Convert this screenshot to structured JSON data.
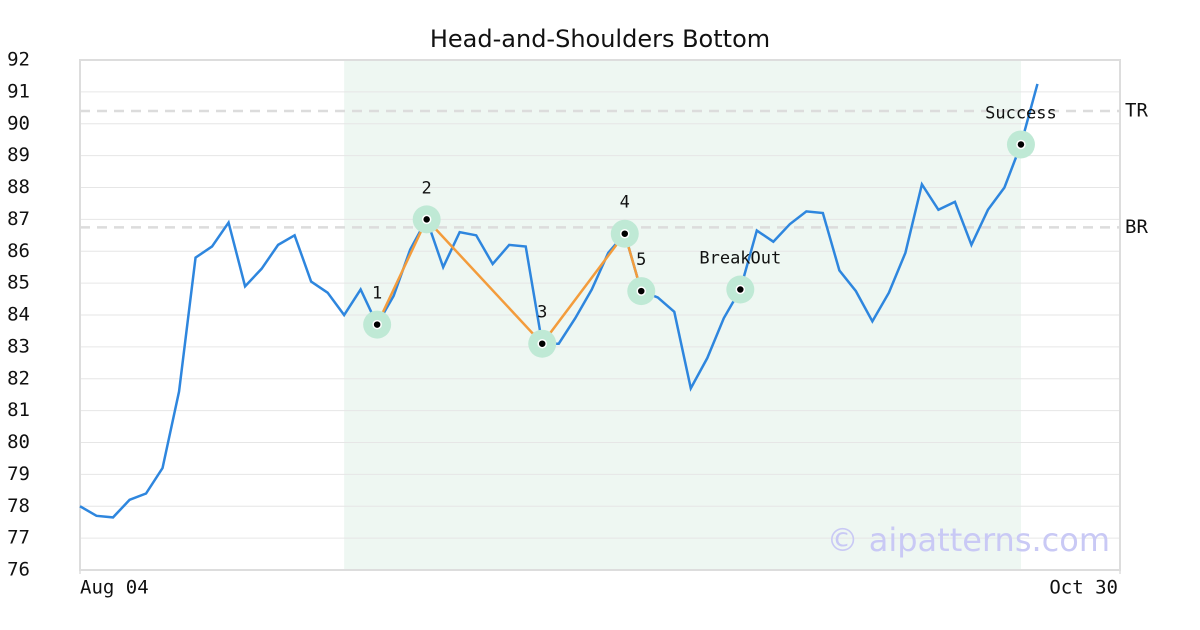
{
  "chart_data": {
    "type": "line",
    "title": "Head-and-Shoulders Bottom",
    "x": [
      0,
      1,
      2,
      3,
      4,
      5,
      6,
      7,
      8,
      9,
      10,
      11,
      12,
      13,
      14,
      15,
      16,
      17,
      18,
      19,
      20,
      21,
      22,
      23,
      24,
      25,
      26,
      27,
      28,
      29,
      30,
      31,
      32,
      33,
      34,
      35,
      36,
      37,
      38,
      39,
      40,
      41,
      42,
      43,
      44,
      45,
      46,
      47,
      48,
      49,
      50,
      51,
      52,
      53,
      54,
      55,
      56,
      57,
      58
    ],
    "series": [
      {
        "color": "#2e86de",
        "values": [
          78.0,
          77.7,
          77.65,
          78.2,
          78.4,
          79.2,
          81.6,
          85.8,
          86.15,
          86.9,
          84.9,
          85.45,
          86.2,
          86.5,
          85.05,
          84.7,
          84.0,
          84.8,
          83.7,
          84.6,
          86.05,
          87.0,
          85.5,
          86.6,
          86.5,
          85.6,
          86.2,
          86.15,
          83.1,
          83.1,
          83.9,
          84.8,
          85.95,
          86.55,
          84.75,
          84.55,
          84.1,
          81.7,
          82.65,
          83.9,
          84.8,
          86.65,
          86.3,
          86.85,
          87.25,
          87.2,
          85.4,
          84.75,
          83.8,
          84.7,
          85.95,
          88.1,
          87.3,
          87.55,
          86.2,
          87.3,
          88.0,
          89.35,
          91.25
        ]
      }
    ],
    "xlim": [
      0,
      63
    ],
    "xticks": [
      {
        "value": 0,
        "label": "Aug 04"
      },
      {
        "value": 63,
        "label": "Oct 30"
      }
    ],
    "ylim": [
      76,
      92
    ],
    "yticks": [
      76,
      77,
      78,
      79,
      80,
      81,
      82,
      83,
      84,
      85,
      86,
      87,
      88,
      89,
      90,
      91,
      92
    ],
    "grid": true,
    "shaded_range": [
      16,
      57
    ],
    "shade_color": "#eef7f2",
    "pattern_color": "#f39c3c",
    "marker_color": "#bfe9d5",
    "pattern_points": [
      {
        "label": "1",
        "x": 18,
        "y": 83.7
      },
      {
        "label": "2",
        "x": 21,
        "y": 87.0
      },
      {
        "label": "3",
        "x": 28,
        "y": 83.1
      },
      {
        "label": "4",
        "x": 33,
        "y": 86.55
      },
      {
        "label": "5",
        "x": 34,
        "y": 84.75
      }
    ],
    "signals": [
      {
        "label": "BreakOut",
        "x": 40,
        "y": 84.8
      },
      {
        "label": "Success",
        "x": 57,
        "y": 89.35
      }
    ],
    "levels": [
      {
        "label": "TR",
        "value": 90.4
      },
      {
        "label": "BR",
        "value": 86.75
      }
    ],
    "watermark": "© aipatterns.com"
  }
}
